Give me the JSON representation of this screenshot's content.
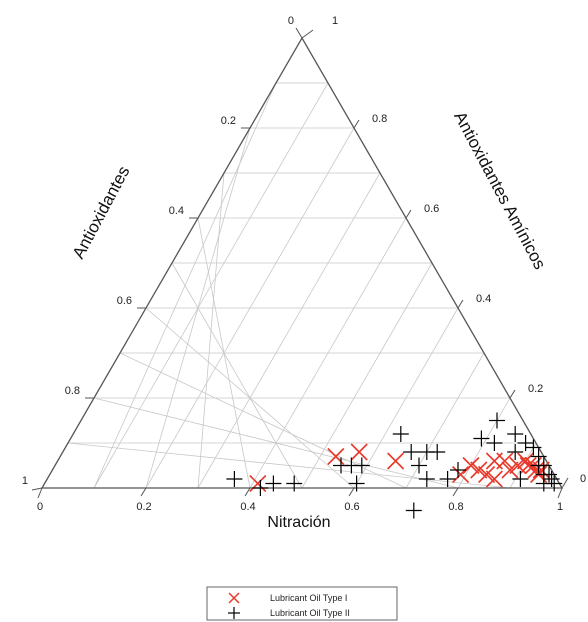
{
  "chart_data": {
    "type": "scatter",
    "subtype": "ternary",
    "title": "",
    "axes": {
      "bottom": {
        "label": "Nitración",
        "ticks": [
          "0",
          "0.2",
          "0.4",
          "0.6",
          "0.8",
          "1"
        ]
      },
      "left": {
        "label": "Antioxidantes",
        "ticks": [
          "0",
          "0.2",
          "0.4",
          "0.6",
          "0.8",
          "1"
        ]
      },
      "right": {
        "label": "Antioxidantes Amínicos",
        "ticks": [
          "0",
          "0.2",
          "0.4",
          "0.6",
          "0.8",
          "1"
        ]
      }
    },
    "grid": true,
    "legend": {
      "position": "bottom"
    },
    "series": [
      {
        "name": "Lubricant Oil Type I",
        "marker": "x",
        "color": "#e8392b",
        "points": [
          {
            "nitracion": 0.41,
            "antioxidantes": 0.58
          },
          {
            "nitracion": 0.53,
            "antioxidantes": 0.4
          },
          {
            "nitracion": 0.57,
            "antioxidantes": 0.35
          },
          {
            "nitracion": 0.65,
            "antioxidantes": 0.29
          },
          {
            "nitracion": 0.79,
            "antioxidantes": 0.18
          },
          {
            "nitracion": 0.8,
            "antioxidantes": 0.15
          },
          {
            "nitracion": 0.82,
            "antioxidantes": 0.14
          },
          {
            "nitracion": 0.84,
            "antioxidantes": 0.13
          },
          {
            "nitracion": 0.84,
            "antioxidantes": 0.1
          },
          {
            "nitracion": 0.86,
            "antioxidantes": 0.12
          },
          {
            "nitracion": 0.86,
            "antioxidantes": 0.08
          },
          {
            "nitracion": 0.88,
            "antioxidantes": 0.08
          },
          {
            "nitracion": 0.89,
            "antioxidantes": 0.06
          },
          {
            "nitracion": 0.9,
            "antioxidantes": 0.04
          },
          {
            "nitracion": 0.91,
            "antioxidantes": 0.04
          },
          {
            "nitracion": 0.92,
            "antioxidantes": 0.03
          },
          {
            "nitracion": 0.93,
            "antioxidantes": 0.03
          },
          {
            "nitracion": 0.94,
            "antioxidantes": 0.03
          },
          {
            "nitracion": 0.94,
            "antioxidantes": 0.02
          }
        ]
      },
      {
        "name": "Lubricant Oil Type II",
        "marker": "+",
        "color": "#000000",
        "points": [
          {
            "nitracion": 0.36,
            "antioxidantes": 0.62
          },
          {
            "nitracion": 0.42,
            "antioxidantes": 0.58
          },
          {
            "nitracion": 0.44,
            "antioxidantes": 0.55
          },
          {
            "nitracion": 0.48,
            "antioxidantes": 0.51
          },
          {
            "nitracion": 0.55,
            "antioxidantes": 0.4
          },
          {
            "nitracion": 0.57,
            "antioxidantes": 0.38
          },
          {
            "nitracion": 0.59,
            "antioxidantes": 0.36
          },
          {
            "nitracion": 0.6,
            "antioxidantes": 0.39
          },
          {
            "nitracion": 0.63,
            "antioxidantes": 0.25
          },
          {
            "nitracion": 0.67,
            "antioxidantes": 0.25
          },
          {
            "nitracion": 0.7,
            "antioxidantes": 0.25
          },
          {
            "nitracion": 0.7,
            "antioxidantes": 0.22
          },
          {
            "nitracion": 0.72,
            "antioxidantes": 0.2
          },
          {
            "nitracion": 0.73,
            "antioxidantes": 0.25
          },
          {
            "nitracion": 0.74,
            "antioxidantes": 0.31
          },
          {
            "nitracion": 0.77,
            "antioxidantes": 0.21
          },
          {
            "nitracion": 0.78,
            "antioxidantes": 0.18
          },
          {
            "nitracion": 0.79,
            "antioxidantes": 0.1
          },
          {
            "nitracion": 0.8,
            "antioxidantes": 0.05
          },
          {
            "nitracion": 0.82,
            "antioxidantes": 0.08
          },
          {
            "nitracion": 0.85,
            "antioxidantes": 0.03
          },
          {
            "nitracion": 0.87,
            "antioxidantes": 0.05
          },
          {
            "nitracion": 0.88,
            "antioxidantes": 0.02
          },
          {
            "nitracion": 0.9,
            "antioxidantes": 0.01
          },
          {
            "nitracion": 0.91,
            "antioxidantes": 0.07
          },
          {
            "nitracion": 0.92,
            "antioxidantes": 0.01
          },
          {
            "nitracion": 0.93,
            "antioxidantes": 0.02
          },
          {
            "nitracion": 0.94,
            "antioxidantes": 0.01
          },
          {
            "nitracion": 0.95,
            "antioxidantes": 0.02
          },
          {
            "nitracion": 0.96,
            "antioxidantes": 0.01
          },
          {
            "nitracion": 0.96,
            "antioxidantes": 0.03
          },
          {
            "nitracion": 0.97,
            "antioxidantes": 0.01
          },
          {
            "nitracion": 0.98,
            "antioxidantes": 0.01
          }
        ]
      }
    ]
  }
}
